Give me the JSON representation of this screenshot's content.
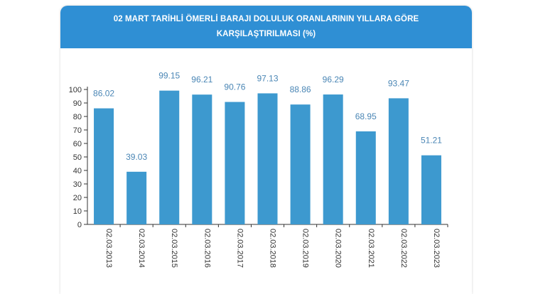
{
  "header": {
    "title": "02 MART TARİHLİ ÖMERLİ BARAJI DOLULUK ORANLARININ YILLARA GÖRE KARŞILAŞTIRILMASI (%)"
  },
  "colors": {
    "header_bg": "#2f8fd4",
    "bar": "#3d99cf",
    "label": "#4a86b5",
    "axis": "#333333"
  },
  "chart_data": {
    "type": "bar",
    "title": "02 MART TARİHLİ ÖMERLİ BARAJI DOLULUK ORANLARININ YILLARA GÖRE KARŞILAŞTIRILMASI (%)",
    "categories": [
      "02.03.2013",
      "02.03.2014",
      "02.03.2015",
      "02.03.2016",
      "02.03.2017",
      "02.03.2018",
      "02.03.2019",
      "02.03.2020",
      "02.03.2021",
      "02.03.2022",
      "02.03.2023"
    ],
    "values": [
      86.02,
      39.03,
      99.15,
      96.21,
      90.76,
      97.13,
      88.86,
      96.29,
      68.95,
      93.47,
      51.21
    ],
    "value_labels": [
      "86.02",
      "39.03",
      "99.15",
      "96.21",
      "90.76",
      "97.13",
      "88.86",
      "96.29",
      "68.95",
      "93.47",
      "51.21"
    ],
    "y_ticks": [
      0,
      10,
      20,
      30,
      40,
      50,
      60,
      70,
      80,
      90,
      100
    ],
    "ylim": [
      0,
      100
    ],
    "grid": false,
    "legend": "none"
  }
}
